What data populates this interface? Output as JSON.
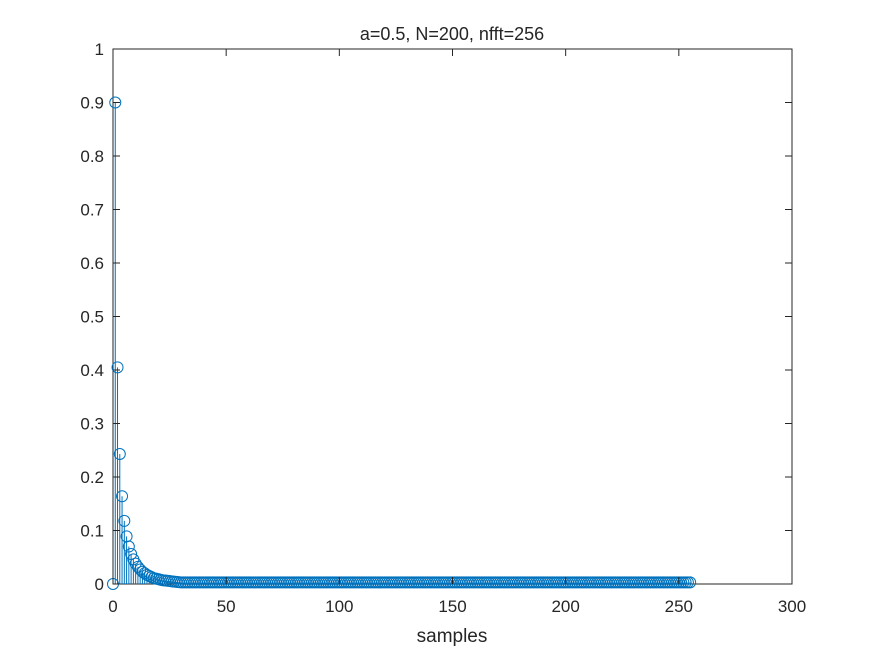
{
  "chart_data": {
    "type": "stem",
    "title": "a=0.5, N=200, nfft=256",
    "xlabel": "samples",
    "ylabel": "",
    "xlim": [
      0,
      300
    ],
    "ylim": [
      0,
      1
    ],
    "xticks": [
      "0",
      "50",
      "100",
      "150",
      "200",
      "250",
      "300"
    ],
    "yticks": [
      "0",
      "0.1",
      "0.2",
      "0.3",
      "0.4",
      "0.5",
      "0.6",
      "0.7",
      "0.8",
      "0.9",
      "1"
    ],
    "grid": false,
    "marker": "open-circle",
    "x_range": [
      0,
      255
    ],
    "head_values": [
      0,
      0.9,
      0.405,
      0.243,
      0.164,
      0.118,
      0.089,
      0.07,
      0.056,
      0.046,
      0.038,
      0.032,
      0.027,
      0.023,
      0.02,
      0.017,
      0.015,
      0.013,
      0.011,
      0.01,
      0.009,
      0.008,
      0.007,
      0.0065,
      0.006,
      0.0055,
      0.005,
      0.0045,
      0.004,
      0.0035,
      0.003
    ],
    "tail_value": 0.003,
    "color": "#0072BD"
  }
}
